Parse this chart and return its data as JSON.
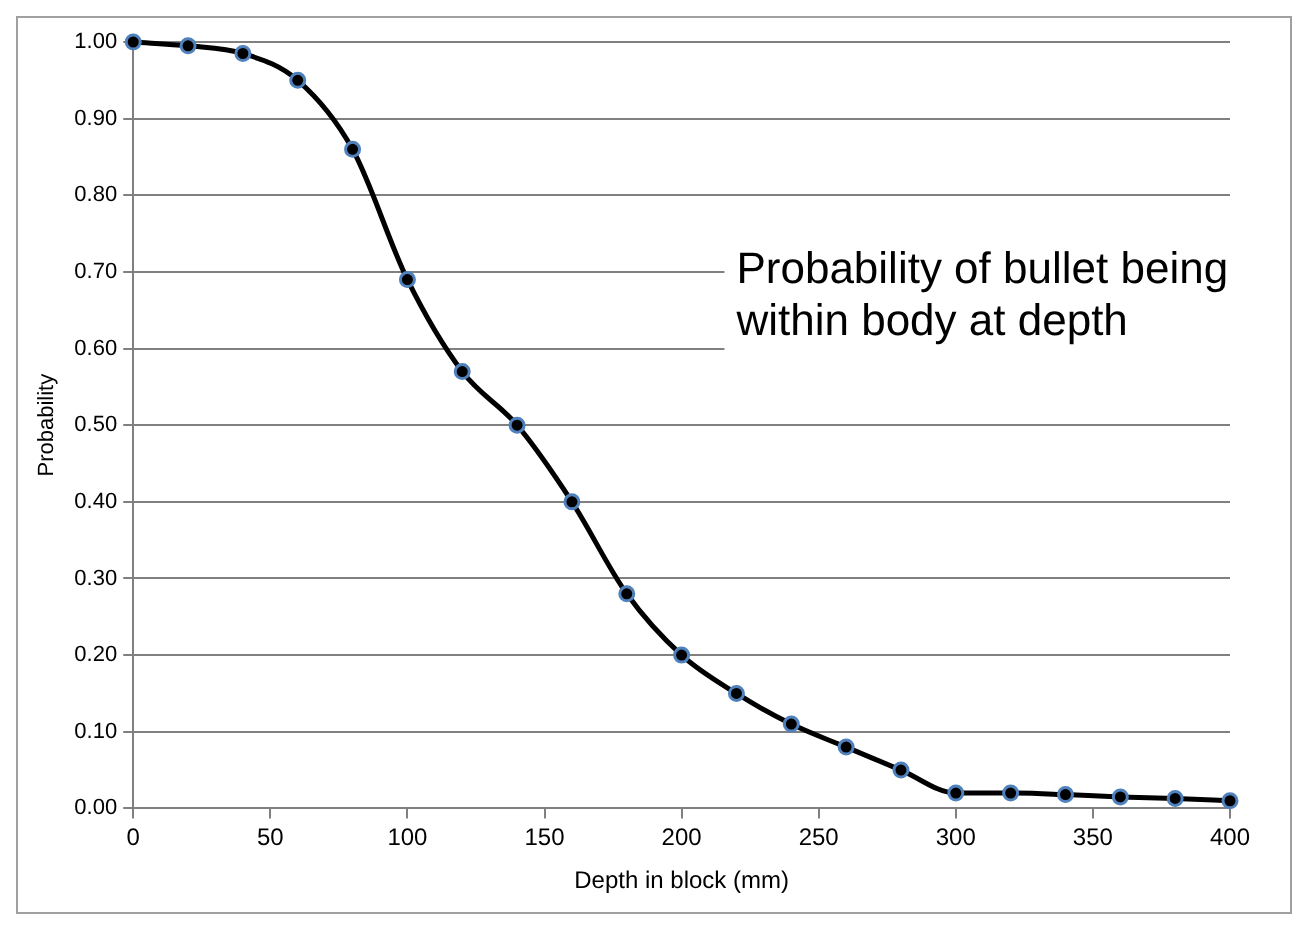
{
  "chart_data": {
    "type": "line",
    "title": "Probability of bullet being within body at depth",
    "xlabel": "Depth in block (mm)",
    "ylabel": "Probability",
    "x": [
      0,
      20,
      40,
      60,
      80,
      100,
      120,
      140,
      160,
      180,
      200,
      220,
      240,
      260,
      280,
      300,
      320,
      340,
      360,
      380,
      400
    ],
    "series": [
      {
        "color": "#000000",
        "values": [
          1.0,
          0.995,
          0.985,
          0.95,
          0.86,
          0.69,
          0.57,
          0.5,
          0.4,
          0.28,
          0.2,
          0.15,
          0.11,
          0.08,
          0.05,
          0.02,
          0.02,
          0.018,
          0.015,
          0.013,
          0.01
        ]
      }
    ],
    "xlim": [
      0,
      400
    ],
    "xticks": [
      0,
      50,
      100,
      150,
      200,
      250,
      300,
      350,
      400
    ],
    "ylim": [
      0,
      1
    ],
    "yticks": [
      {
        "value": 0,
        "label": "0.00"
      },
      {
        "value": 0.1,
        "label": "0.10"
      },
      {
        "value": 0.2,
        "label": "0.20"
      },
      {
        "value": 0.3,
        "label": "0.30"
      },
      {
        "value": 0.4,
        "label": "0.40"
      },
      {
        "value": 0.5,
        "label": "0.50"
      },
      {
        "value": 0.6,
        "label": "0.60"
      },
      {
        "value": 0.7,
        "label": "0.70"
      },
      {
        "value": 0.8,
        "label": "0.80"
      },
      {
        "value": 0.9,
        "label": "0.90"
      },
      {
        "value": 1,
        "label": "1.00"
      }
    ],
    "grid": "y",
    "legend": false,
    "marker": "circle",
    "line_style": "solid"
  }
}
